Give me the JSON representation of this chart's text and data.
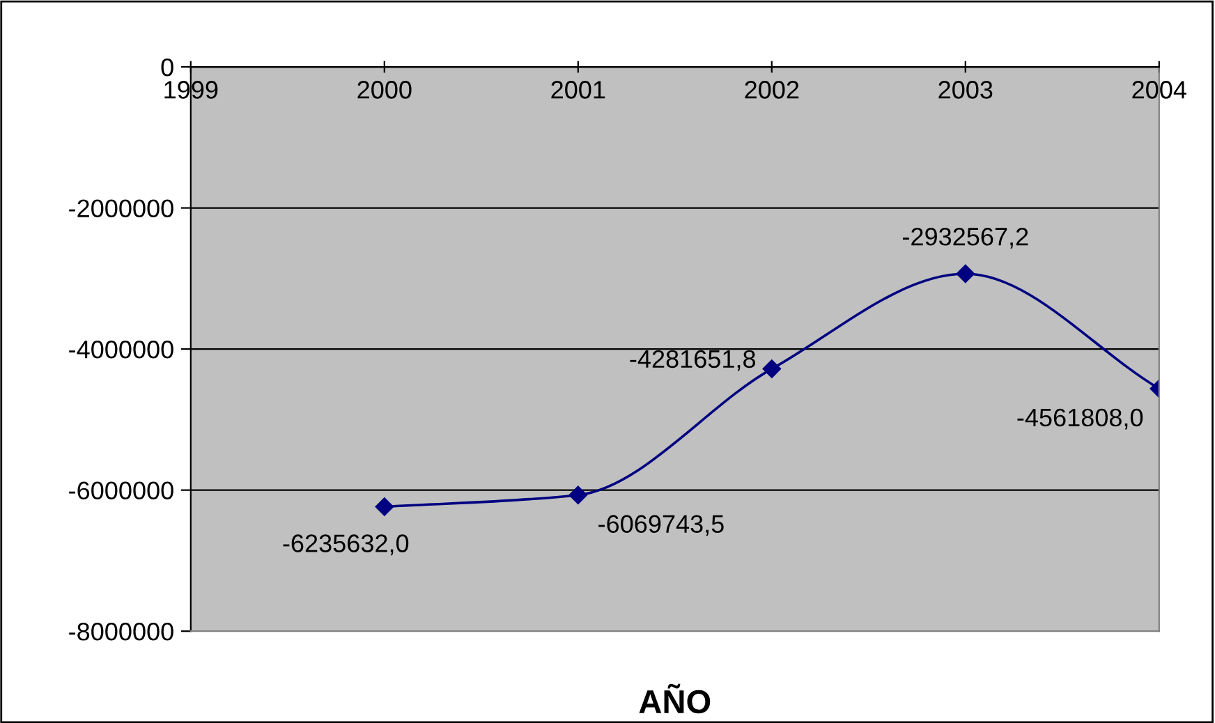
{
  "chart_data": {
    "type": "line",
    "xlabel": "AÑO",
    "x": [
      2000,
      2001,
      2002,
      2003,
      2004
    ],
    "series": [
      {
        "color": "#000080",
        "values": [
          -6235632.0,
          -6069743.5,
          -4281651.8,
          -2932567.2,
          -4561808.0
        ],
        "value_labels": [
          "-6235632,0",
          "-6069743,5",
          "-4281651,8",
          "-2932567,2",
          "-4561808,0"
        ]
      }
    ],
    "xlim": [
      1999,
      2004
    ],
    "xticks": [
      1999,
      2000,
      2001,
      2002,
      2003,
      2004
    ],
    "ylim": [
      -8000000,
      0
    ],
    "yticks": [
      {
        "value": -8000000,
        "label": "-8000000"
      },
      {
        "value": -6000000,
        "label": "-6000000"
      },
      {
        "value": -4000000,
        "label": "-4000000"
      },
      {
        "value": -2000000,
        "label": "-2000000"
      },
      0
    ],
    "grid": "y",
    "marker": "diamond",
    "line_style": "solid",
    "legend": false
  }
}
